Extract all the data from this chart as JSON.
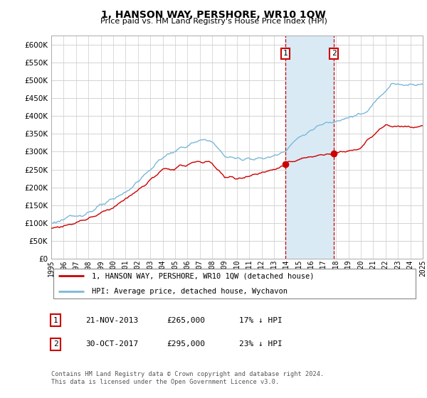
{
  "title": "1, HANSON WAY, PERSHORE, WR10 1QW",
  "subtitle": "Price paid vs. HM Land Registry's House Price Index (HPI)",
  "ylim": [
    0,
    625000
  ],
  "yticks": [
    0,
    50000,
    100000,
    150000,
    200000,
    250000,
    300000,
    350000,
    400000,
    450000,
    500000,
    550000,
    600000
  ],
  "xlim_start": 1995,
  "xlim_end": 2025,
  "sale1": {
    "date_num": 2013.9,
    "price": 265000,
    "label": "1",
    "date_str": "21-NOV-2013",
    "pct": "17% ↓ HPI"
  },
  "sale2": {
    "date_num": 2017.83,
    "price": 295000,
    "label": "2",
    "date_str": "30-OCT-2017",
    "pct": "23% ↓ HPI"
  },
  "hpi_color": "#7ab8d9",
  "price_color": "#cc0000",
  "shading_color": "#daeaf5",
  "vline_color": "#cc0000",
  "box_color": "#cc0000",
  "legend_line1": "1, HANSON WAY, PERSHORE, WR10 1QW (detached house)",
  "legend_line2": "HPI: Average price, detached house, Wychavon",
  "footer1": "Contains HM Land Registry data © Crown copyright and database right 2024.",
  "footer2": "This data is licensed under the Open Government Licence v3.0.",
  "sale1_row": [
    "1",
    "21-NOV-2013",
    "£265,000",
    "17% ↓ HPI"
  ],
  "sale2_row": [
    "2",
    "30-OCT-2017",
    "£295,000",
    "23% ↓ HPI"
  ]
}
